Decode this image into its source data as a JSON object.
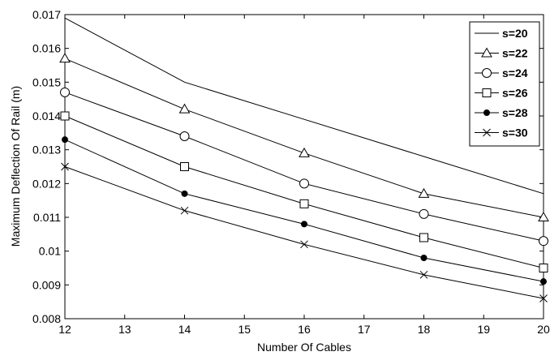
{
  "chart_data": {
    "type": "line",
    "title": "",
    "xlabel": "Number Of Cables",
    "ylabel": "Maximum Deflection Of Rail (m)",
    "xlim": [
      12,
      20
    ],
    "ylim": [
      0.008,
      0.017
    ],
    "x_ticks": [
      "12",
      "13",
      "14",
      "15",
      "16",
      "17",
      "18",
      "19",
      "20"
    ],
    "y_ticks": [
      "0.008",
      "0.009",
      "0.01",
      "0.011",
      "0.012",
      "0.013",
      "0.014",
      "0.015",
      "0.016",
      "0.017"
    ],
    "x": [
      12,
      14,
      16,
      18,
      20
    ],
    "grid": false,
    "legend_position": "top-right",
    "line_color": "#000000",
    "series": [
      {
        "name": "s=20",
        "marker": "none",
        "values": [
          0.0169,
          0.015,
          0.0139,
          0.0128,
          0.0117
        ]
      },
      {
        "name": "s=22",
        "marker": "triangle",
        "values": [
          0.0157,
          0.0142,
          0.0129,
          0.0117,
          0.011
        ]
      },
      {
        "name": "s=24",
        "marker": "circle",
        "values": [
          0.0147,
          0.0134,
          0.012,
          0.0111,
          0.0103
        ]
      },
      {
        "name": "s=26",
        "marker": "square",
        "values": [
          0.014,
          0.0125,
          0.0114,
          0.0104,
          0.0095
        ]
      },
      {
        "name": "s=28",
        "marker": "dot",
        "values": [
          0.0133,
          0.0117,
          0.0108,
          0.0098,
          0.0091
        ]
      },
      {
        "name": "s=30",
        "marker": "x",
        "values": [
          0.0125,
          0.0112,
          0.0102,
          0.0093,
          0.0086
        ]
      }
    ]
  }
}
